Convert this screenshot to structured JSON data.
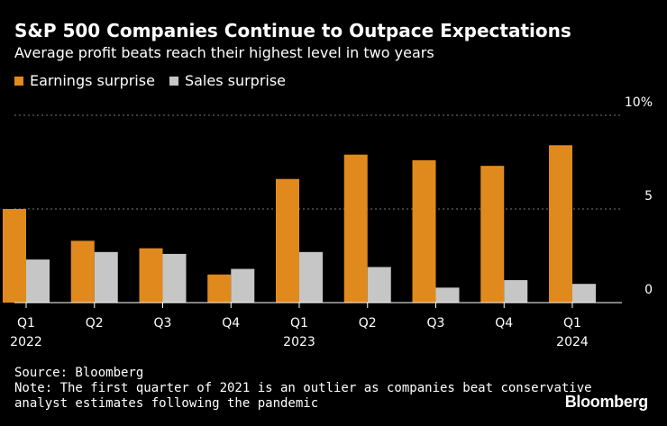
{
  "header": {
    "title": "S&P 500 Companies Continue to Outpace Expectations",
    "subtitle": "Average profit beats reach their highest level in two years"
  },
  "legend": {
    "earnings_label": "Earnings surprise",
    "sales_label": "Sales surprise"
  },
  "colors": {
    "earnings": "#E08A1E",
    "sales": "#C6C6C6",
    "background": "#000000",
    "text": "#FFFFFF",
    "grid": "#777777"
  },
  "chart_data": {
    "type": "bar",
    "title": "S&P 500 Companies Continue to Outpace Expectations",
    "subtitle": "Average profit beats reach their highest level in two years",
    "categories": [
      "Q1",
      "Q2",
      "Q3",
      "Q4",
      "Q1",
      "Q2",
      "Q3",
      "Q4",
      "Q1"
    ],
    "year_labels": [
      "2022",
      "",
      "",
      "",
      "2023",
      "",
      "",
      "",
      "2024"
    ],
    "series": [
      {
        "name": "Earnings surprise",
        "values": [
          5.0,
          3.3,
          2.9,
          1.5,
          6.6,
          7.9,
          7.6,
          7.3,
          8.4
        ]
      },
      {
        "name": "Sales surprise",
        "values": [
          2.3,
          2.7,
          2.6,
          1.8,
          2.7,
          1.9,
          0.8,
          1.2,
          1.0
        ]
      }
    ],
    "y_ticks": [
      {
        "value": 0,
        "label": "0"
      },
      {
        "value": 5,
        "label": "5"
      },
      {
        "value": 10,
        "label": "10%"
      }
    ],
    "ylim": [
      0,
      10
    ],
    "xlabel": "",
    "ylabel": "",
    "grid": true,
    "legend_position": "top-left"
  },
  "footer": {
    "source": "Source: Bloomberg",
    "note_line1": "Note: The first quarter of 2021 is an outlier as companies beat conservative",
    "note_line2": "analyst estimates following the pandemic",
    "brand": "Bloomberg"
  }
}
